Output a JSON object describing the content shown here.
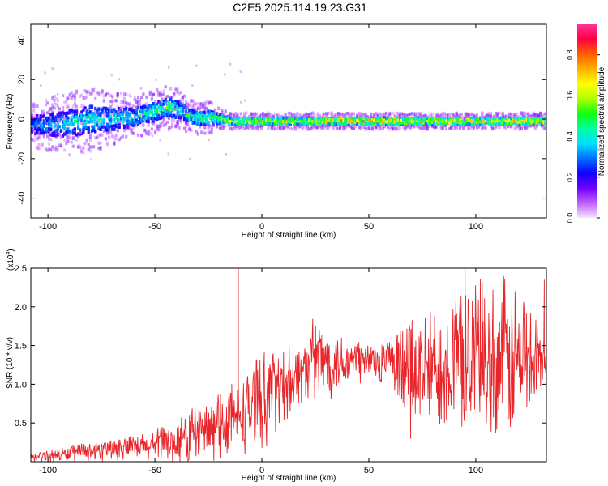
{
  "figure": {
    "title": "C2E5.2025.114.19.23.G31"
  },
  "chart_data": [
    {
      "type": "heatmap",
      "xlabel": "Height of straight line (km)",
      "ylabel": "Frequency (Hz)",
      "xlim": [
        -108,
        133
      ],
      "ylim": [
        -50,
        48
      ],
      "xticks": [
        -100,
        -50,
        0,
        50,
        100
      ],
      "yticks": [
        -40,
        -20,
        0,
        20,
        40
      ],
      "colorbar": {
        "label": "Normalized spectral amplitude",
        "range": [
          0,
          0.95
        ],
        "ticks": [
          0.0,
          0.2,
          0.4,
          0.6,
          0.8
        ],
        "colors": [
          "#f3e6ff",
          "#c060ff",
          "#7000ff",
          "#1000ff",
          "#0070ff",
          "#00e0ff",
          "#00ffa0",
          "#10ff10",
          "#b0ff00",
          "#ffff00",
          "#ffb000",
          "#ff6000",
          "#ff0040",
          "#ff3399"
        ]
      },
      "ridge": {
        "x": [
          -108,
          -100,
          -90,
          -80,
          -70,
          -60,
          -50,
          -45,
          -40,
          -35,
          -30,
          -25,
          -20,
          -15,
          -10,
          0,
          20,
          40,
          60,
          80,
          100,
          120,
          133
        ],
        "center_hz": [
          -3,
          -3,
          -2,
          0,
          0,
          1,
          4,
          6,
          5,
          2,
          0,
          1,
          0,
          -1,
          -1,
          -1,
          -1,
          -1,
          -1,
          -1,
          -1,
          -1,
          -1
        ],
        "spread_hz": [
          4,
          5,
          6,
          6,
          5,
          4,
          4,
          4,
          4,
          3,
          3,
          3,
          2,
          1.5,
          1.5,
          1.5,
          1.5,
          1.5,
          1.5,
          1.5,
          1.5,
          1.5,
          1.5
        ],
        "amplitude": [
          0.3,
          0.35,
          0.4,
          0.42,
          0.42,
          0.42,
          0.45,
          0.48,
          0.45,
          0.45,
          0.5,
          0.5,
          0.55,
          0.6,
          0.62,
          0.7,
          0.68,
          0.7,
          0.68,
          0.72,
          0.72,
          0.7,
          0.72
        ]
      }
    },
    {
      "type": "line",
      "xlabel": "Height of straight line (km)",
      "ylabel": "SNR (10 * v/v)",
      "y_multiplier": "(x10^4)",
      "xlim": [
        -108,
        133
      ],
      "ylim": [
        0,
        2.5
      ],
      "xticks": [
        -100,
        -50,
        0,
        50,
        100
      ],
      "yticks": [
        0.5,
        1.0,
        1.5,
        2.0,
        2.5
      ],
      "series": [
        {
          "color": "#e8262a",
          "envelope_x": [
            -108,
            -90,
            -70,
            -50,
            -40,
            -30,
            -20,
            -10,
            0,
            10,
            20,
            25,
            30,
            40,
            50,
            60,
            65,
            70,
            80,
            90,
            100,
            110,
            120,
            133
          ],
          "envelope_mean": [
            0.05,
            0.1,
            0.15,
            0.2,
            0.25,
            0.35,
            0.45,
            0.6,
            0.8,
            1.0,
            1.2,
            1.3,
            1.3,
            1.3,
            1.3,
            1.25,
            1.1,
            1.1,
            1.2,
            1.3,
            1.35,
            1.3,
            1.3,
            1.3
          ],
          "envelope_max": [
            0.12,
            0.2,
            0.28,
            0.4,
            0.55,
            0.75,
            0.9,
            1.1,
            1.4,
            1.5,
            1.6,
            1.9,
            1.8,
            1.65,
            1.6,
            1.6,
            1.7,
            1.9,
            2.0,
            2.2,
            2.4,
            2.3,
            2.35,
            1.6
          ],
          "peaks": [
            {
              "x": -11,
              "y": 2.5
            },
            {
              "x": 95,
              "y": 2.5
            },
            {
              "x": 113,
              "y": 2.4
            },
            {
              "x": 132,
              "y": 2.35
            }
          ]
        }
      ]
    }
  ]
}
